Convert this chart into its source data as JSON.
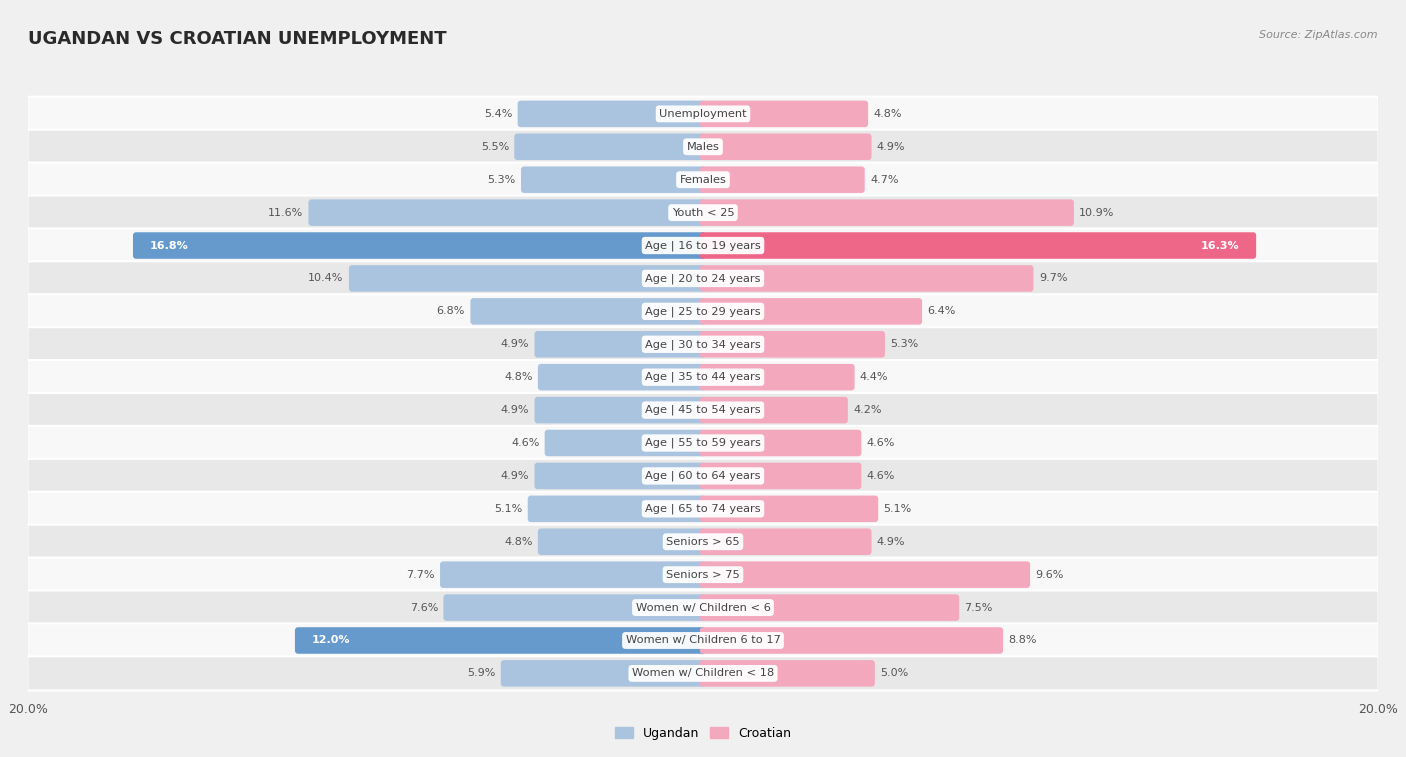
{
  "title": "UGANDAN VS CROATIAN UNEMPLOYMENT",
  "source": "Source: ZipAtlas.com",
  "categories": [
    "Unemployment",
    "Males",
    "Females",
    "Youth < 25",
    "Age | 16 to 19 years",
    "Age | 20 to 24 years",
    "Age | 25 to 29 years",
    "Age | 30 to 34 years",
    "Age | 35 to 44 years",
    "Age | 45 to 54 years",
    "Age | 55 to 59 years",
    "Age | 60 to 64 years",
    "Age | 65 to 74 years",
    "Seniors > 65",
    "Seniors > 75",
    "Women w/ Children < 6",
    "Women w/ Children 6 to 17",
    "Women w/ Children < 18"
  ],
  "ugandan": [
    5.4,
    5.5,
    5.3,
    11.6,
    16.8,
    10.4,
    6.8,
    4.9,
    4.8,
    4.9,
    4.6,
    4.9,
    5.1,
    4.8,
    7.7,
    7.6,
    12.0,
    5.9
  ],
  "croatian": [
    4.8,
    4.9,
    4.7,
    10.9,
    16.3,
    9.7,
    6.4,
    5.3,
    4.4,
    4.2,
    4.6,
    4.6,
    5.1,
    4.9,
    9.6,
    7.5,
    8.8,
    5.0
  ],
  "ugandan_color": "#aac4e0",
  "croatian_color": "#f4a8be",
  "ugandan_highlight": "#6699cc",
  "croatian_highlight": "#ee6688",
  "max_val": 20.0,
  "bg_color": "#f0f0f0",
  "row_color_dark": "#e8e8e8",
  "row_color_light": "#f8f8f8",
  "label_color": "#444444",
  "value_color": "#555555",
  "title_color": "#2a2a2a",
  "source_color": "#888888"
}
